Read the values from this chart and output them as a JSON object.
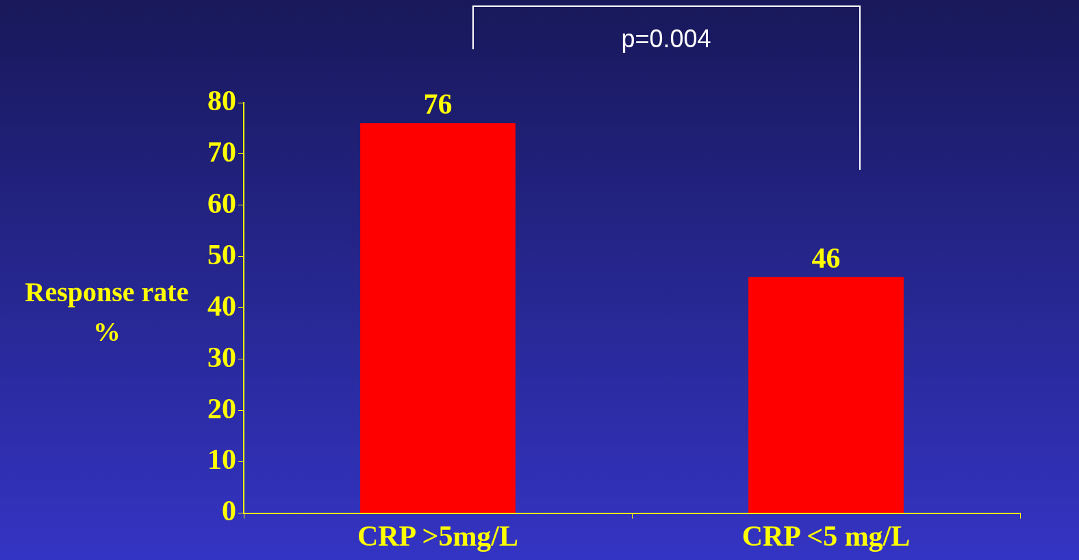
{
  "chart_data": {
    "type": "bar",
    "ylabel": "Response rate %",
    "categories": [
      "CRP >5mg/L",
      "CRP <5 mg/L"
    ],
    "values": [
      76,
      46
    ],
    "color": "#ff0000",
    "ylim": [
      0,
      80
    ],
    "yticks": [
      0,
      10,
      20,
      30,
      40,
      50,
      60,
      70,
      80
    ],
    "data_labels": true,
    "legend": false,
    "annotations": [
      "p=0.004"
    ]
  }
}
